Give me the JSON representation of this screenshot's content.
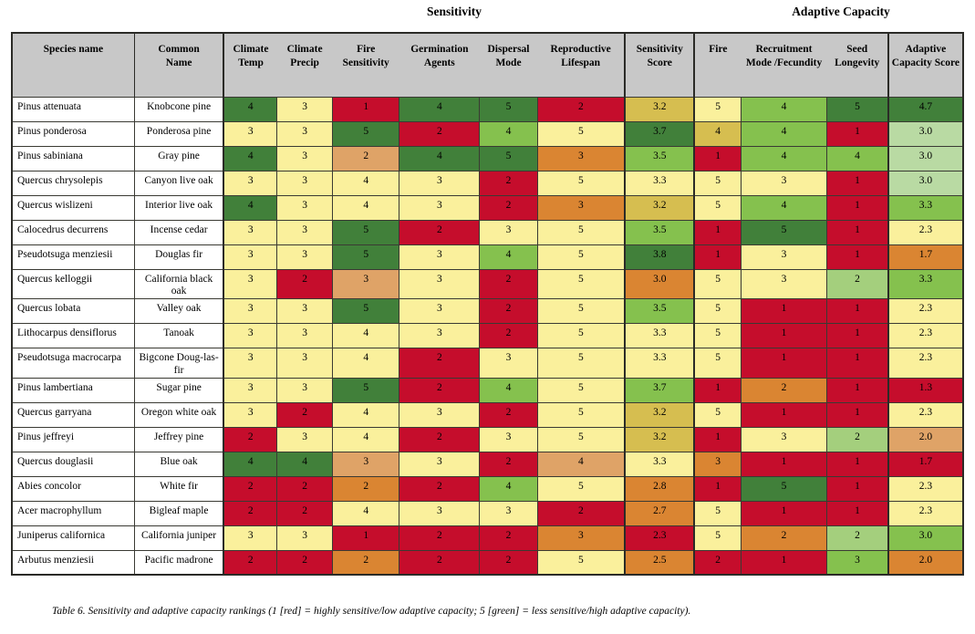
{
  "titles": {
    "sensitivity": "Sensitivity",
    "adaptive_capacity": "Adaptive Capacity"
  },
  "caption": "Table 6. Sensitivity and adaptive capacity rankings (1 [red] = highly sensitive/low adaptive capacity; 5 [green] = less sensitive/high adaptive capacity).",
  "palette": {
    "dg": "#41803A",
    "mg": "#85C14E",
    "lg": "#A4CF7D",
    "pg": "#B9DAA3",
    "y": "#FAF09C",
    "ol": "#D6BE50",
    "or": "#DA8532",
    "tn": "#DFA367",
    "rd": "#C50D2C"
  },
  "header_background": "#C8C8C8",
  "columns": [
    {
      "key": "species_name",
      "label": "Species name"
    },
    {
      "key": "common_name",
      "label": "Common Name"
    },
    {
      "key": "climate_temp",
      "label": "Climate Temp"
    },
    {
      "key": "climate_precip",
      "label": "Climate Precip"
    },
    {
      "key": "fire_sensitivity",
      "label": "Fire Sensitivity"
    },
    {
      "key": "germination_agents",
      "label": "Germination Agents"
    },
    {
      "key": "dispersal_mode",
      "label": "Dispersal Mode"
    },
    {
      "key": "reproductive_lifespan",
      "label": "Reproductive Lifespan"
    },
    {
      "key": "sensitivity_score",
      "label": "Sensitivity Score"
    },
    {
      "key": "fire",
      "label": "Fire"
    },
    {
      "key": "recruitment_mode",
      "label": "Recruitment Mode /Fecundity"
    },
    {
      "key": "seed_longevity",
      "label": "Seed Longevity"
    },
    {
      "key": "adaptive_capacity_score",
      "label": "Adaptive Capacity Score"
    }
  ],
  "rows": [
    {
      "species": "Pinus attenuata",
      "common": "Knobcone pine",
      "cells": [
        [
          "4",
          "dg"
        ],
        [
          "3",
          "y"
        ],
        [
          "1",
          "rd"
        ],
        [
          "4",
          "dg"
        ],
        [
          "5",
          "dg"
        ],
        [
          "2",
          "rd"
        ],
        [
          "3.2",
          "ol"
        ],
        [
          "5",
          "y"
        ],
        [
          "4",
          "mg"
        ],
        [
          "5",
          "dg"
        ],
        [
          "4.7",
          "dg"
        ]
      ]
    },
    {
      "species": "Pinus ponderosa",
      "common": "Ponderosa pine",
      "cells": [
        [
          "3",
          "y"
        ],
        [
          "3",
          "y"
        ],
        [
          "5",
          "dg"
        ],
        [
          "2",
          "rd"
        ],
        [
          "4",
          "mg"
        ],
        [
          "5",
          "y"
        ],
        [
          "3.7",
          "dg"
        ],
        [
          "4",
          "ol"
        ],
        [
          "4",
          "mg"
        ],
        [
          "1",
          "rd"
        ],
        [
          "3.0",
          "pg"
        ]
      ]
    },
    {
      "species": "Pinus sabiniana",
      "common": "Gray pine",
      "cells": [
        [
          "4",
          "dg"
        ],
        [
          "3",
          "y"
        ],
        [
          "2",
          "tn"
        ],
        [
          "4",
          "dg"
        ],
        [
          "5",
          "dg"
        ],
        [
          "3",
          "or"
        ],
        [
          "3.5",
          "mg"
        ],
        [
          "1",
          "rd"
        ],
        [
          "4",
          "mg"
        ],
        [
          "4",
          "mg"
        ],
        [
          "3.0",
          "pg"
        ]
      ]
    },
    {
      "species": "Quercus chrysolepis",
      "common": "Canyon live oak",
      "cells": [
        [
          "3",
          "y"
        ],
        [
          "3",
          "y"
        ],
        [
          "4",
          "y"
        ],
        [
          "3",
          "y"
        ],
        [
          "2",
          "rd"
        ],
        [
          "5",
          "y"
        ],
        [
          "3.3",
          "y"
        ],
        [
          "5",
          "y"
        ],
        [
          "3",
          "y"
        ],
        [
          "1",
          "rd"
        ],
        [
          "3.0",
          "pg"
        ]
      ]
    },
    {
      "species": "Quercus wislizeni",
      "common": "Interior live oak",
      "cells": [
        [
          "4",
          "dg"
        ],
        [
          "3",
          "y"
        ],
        [
          "4",
          "y"
        ],
        [
          "3",
          "y"
        ],
        [
          "2",
          "rd"
        ],
        [
          "3",
          "or"
        ],
        [
          "3.2",
          "ol"
        ],
        [
          "5",
          "y"
        ],
        [
          "4",
          "mg"
        ],
        [
          "1",
          "rd"
        ],
        [
          "3.3",
          "mg"
        ]
      ]
    },
    {
      "species": "Calocedrus decurrens",
      "common": "Incense cedar",
      "cells": [
        [
          "3",
          "y"
        ],
        [
          "3",
          "y"
        ],
        [
          "5",
          "dg"
        ],
        [
          "2",
          "rd"
        ],
        [
          "3",
          "y"
        ],
        [
          "5",
          "y"
        ],
        [
          "3.5",
          "mg"
        ],
        [
          "1",
          "rd"
        ],
        [
          "5",
          "dg"
        ],
        [
          "1",
          "rd"
        ],
        [
          "2.3",
          "y"
        ]
      ]
    },
    {
      "species": "Pseudotsuga menziesii",
      "common": "Douglas fir",
      "cells": [
        [
          "3",
          "y"
        ],
        [
          "3",
          "y"
        ],
        [
          "5",
          "dg"
        ],
        [
          "3",
          "y"
        ],
        [
          "4",
          "mg"
        ],
        [
          "5",
          "y"
        ],
        [
          "3.8",
          "dg"
        ],
        [
          "1",
          "rd"
        ],
        [
          "3",
          "y"
        ],
        [
          "1",
          "rd"
        ],
        [
          "1.7",
          "or"
        ]
      ]
    },
    {
      "species": "Quercus kelloggii",
      "common": "California black oak",
      "cells": [
        [
          "3",
          "y"
        ],
        [
          "2",
          "rd"
        ],
        [
          "3",
          "tn"
        ],
        [
          "3",
          "y"
        ],
        [
          "2",
          "rd"
        ],
        [
          "5",
          "y"
        ],
        [
          "3.0",
          "or"
        ],
        [
          "5",
          "y"
        ],
        [
          "3",
          "y"
        ],
        [
          "2",
          "lg"
        ],
        [
          "3.3",
          "mg"
        ]
      ]
    },
    {
      "species": "Quercus lobata",
      "common": "Valley oak",
      "cells": [
        [
          "3",
          "y"
        ],
        [
          "3",
          "y"
        ],
        [
          "5",
          "dg"
        ],
        [
          "3",
          "y"
        ],
        [
          "2",
          "rd"
        ],
        [
          "5",
          "y"
        ],
        [
          "3.5",
          "mg"
        ],
        [
          "5",
          "y"
        ],
        [
          "1",
          "rd"
        ],
        [
          "1",
          "rd"
        ],
        [
          "2.3",
          "y"
        ]
      ]
    },
    {
      "species": "Lithocarpus densiflorus",
      "common": "Tanoak",
      "cells": [
        [
          "3",
          "y"
        ],
        [
          "3",
          "y"
        ],
        [
          "4",
          "y"
        ],
        [
          "3",
          "y"
        ],
        [
          "2",
          "rd"
        ],
        [
          "5",
          "y"
        ],
        [
          "3.3",
          "y"
        ],
        [
          "5",
          "y"
        ],
        [
          "1",
          "rd"
        ],
        [
          "1",
          "rd"
        ],
        [
          "2.3",
          "y"
        ]
      ]
    },
    {
      "species": "Pseudotsuga macrocarpa",
      "common": "Bigcone Doug-las-fir",
      "cells": [
        [
          "3",
          "y"
        ],
        [
          "3",
          "y"
        ],
        [
          "4",
          "y"
        ],
        [
          "2",
          "rd"
        ],
        [
          "3",
          "y"
        ],
        [
          "5",
          "y"
        ],
        [
          "3.3",
          "y"
        ],
        [
          "5",
          "y"
        ],
        [
          "1",
          "rd"
        ],
        [
          "1",
          "rd"
        ],
        [
          "2.3",
          "y"
        ]
      ]
    },
    {
      "species": "Pinus lambertiana",
      "common": "Sugar pine",
      "cells": [
        [
          "3",
          "y"
        ],
        [
          "3",
          "y"
        ],
        [
          "5",
          "dg"
        ],
        [
          "2",
          "rd"
        ],
        [
          "4",
          "mg"
        ],
        [
          "5",
          "y"
        ],
        [
          "3.7",
          "mg"
        ],
        [
          "1",
          "rd"
        ],
        [
          "2",
          "or"
        ],
        [
          "1",
          "rd"
        ],
        [
          "1.3",
          "rd"
        ]
      ]
    },
    {
      "species": "Quercus garryana",
      "common": "Oregon white oak",
      "cells": [
        [
          "3",
          "y"
        ],
        [
          "2",
          "rd"
        ],
        [
          "4",
          "y"
        ],
        [
          "3",
          "y"
        ],
        [
          "2",
          "rd"
        ],
        [
          "5",
          "y"
        ],
        [
          "3.2",
          "ol"
        ],
        [
          "5",
          "y"
        ],
        [
          "1",
          "rd"
        ],
        [
          "1",
          "rd"
        ],
        [
          "2.3",
          "y"
        ]
      ]
    },
    {
      "species": "Pinus jeffreyi",
      "common": "Jeffrey pine",
      "cells": [
        [
          "2",
          "rd"
        ],
        [
          "3",
          "y"
        ],
        [
          "4",
          "y"
        ],
        [
          "2",
          "rd"
        ],
        [
          "3",
          "y"
        ],
        [
          "5",
          "y"
        ],
        [
          "3.2",
          "ol"
        ],
        [
          "1",
          "rd"
        ],
        [
          "3",
          "y"
        ],
        [
          "2",
          "lg"
        ],
        [
          "2.0",
          "tn"
        ]
      ]
    },
    {
      "species": "Quercus douglasii",
      "common": "Blue oak",
      "cells": [
        [
          "4",
          "dg"
        ],
        [
          "4",
          "dg"
        ],
        [
          "3",
          "tn"
        ],
        [
          "3",
          "y"
        ],
        [
          "2",
          "rd"
        ],
        [
          "4",
          "tn"
        ],
        [
          "3.3",
          "y"
        ],
        [
          "3",
          "or"
        ],
        [
          "1",
          "rd"
        ],
        [
          "1",
          "rd"
        ],
        [
          "1.7",
          "rd"
        ]
      ]
    },
    {
      "species": "Abies concolor",
      "common": "White fir",
      "cells": [
        [
          "2",
          "rd"
        ],
        [
          "2",
          "rd"
        ],
        [
          "2",
          "or"
        ],
        [
          "2",
          "rd"
        ],
        [
          "4",
          "mg"
        ],
        [
          "5",
          "y"
        ],
        [
          "2.8",
          "or"
        ],
        [
          "1",
          "rd"
        ],
        [
          "5",
          "dg"
        ],
        [
          "1",
          "rd"
        ],
        [
          "2.3",
          "y"
        ]
      ]
    },
    {
      "species": "Acer macrophyllum",
      "common": "Bigleaf maple",
      "cells": [
        [
          "2",
          "rd"
        ],
        [
          "2",
          "rd"
        ],
        [
          "4",
          "y"
        ],
        [
          "3",
          "y"
        ],
        [
          "3",
          "y"
        ],
        [
          "2",
          "rd"
        ],
        [
          "2.7",
          "or"
        ],
        [
          "5",
          "y"
        ],
        [
          "1",
          "rd"
        ],
        [
          "1",
          "rd"
        ],
        [
          "2.3",
          "y"
        ]
      ]
    },
    {
      "species": "Juniperus californica",
      "common": "California juniper",
      "cells": [
        [
          "3",
          "y"
        ],
        [
          "3",
          "y"
        ],
        [
          "1",
          "rd"
        ],
        [
          "2",
          "rd"
        ],
        [
          "2",
          "rd"
        ],
        [
          "3",
          "or"
        ],
        [
          "2.3",
          "rd"
        ],
        [
          "5",
          "y"
        ],
        [
          "2",
          "or"
        ],
        [
          "2",
          "lg"
        ],
        [
          "3.0",
          "mg"
        ]
      ]
    },
    {
      "species": "Arbutus menziesii",
      "common": "Pacific madrone",
      "cells": [
        [
          "2",
          "rd"
        ],
        [
          "2",
          "rd"
        ],
        [
          "2",
          "or"
        ],
        [
          "2",
          "rd"
        ],
        [
          "2",
          "rd"
        ],
        [
          "5",
          "y"
        ],
        [
          "2.5",
          "or"
        ],
        [
          "2",
          "rd"
        ],
        [
          "1",
          "rd"
        ],
        [
          "3",
          "mg"
        ],
        [
          "2.0",
          "or"
        ]
      ]
    }
  ]
}
